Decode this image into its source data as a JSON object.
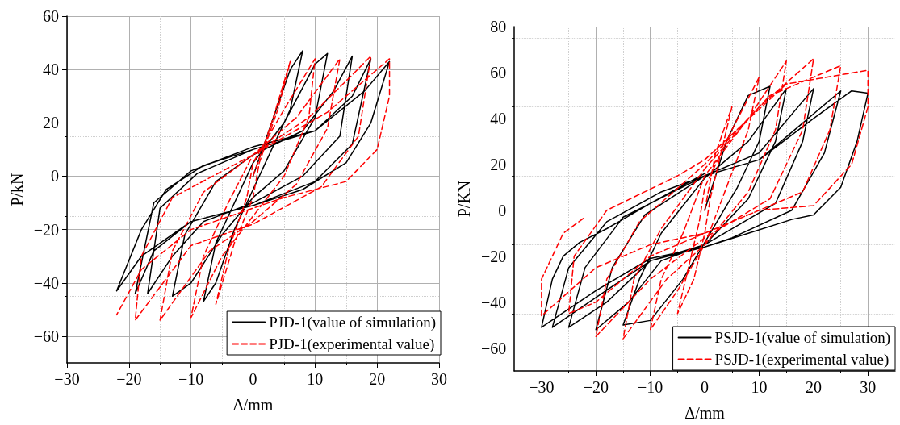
{
  "chart_data": [
    {
      "type": "line",
      "xlabel": "Δ/mm",
      "ylabel": "P/kN",
      "xlim": [
        -30,
        30
      ],
      "xticks": [
        -30,
        -20,
        -10,
        0,
        10,
        20,
        30
      ],
      "ylim": [
        -70,
        60
      ],
      "yticks": [
        -60,
        -40,
        -20,
        0,
        20,
        40,
        60
      ],
      "grid": true,
      "legend": "bottom right",
      "marker": "none",
      "series": [
        {
          "name": "PJD-1(value of simulation)",
          "color": "#000000",
          "line_style": "solid",
          "x": [
            0,
            3,
            6,
            8,
            6,
            2,
            0,
            -3,
            -6,
            -8,
            -6,
            -2,
            0,
            5,
            10,
            12,
            10,
            5,
            0,
            -5,
            -10,
            -13,
            -11,
            -6,
            0,
            8,
            13,
            16,
            14,
            8,
            0,
            -8,
            -13,
            -17,
            -15,
            -9,
            0,
            10,
            16,
            19,
            16,
            10,
            0,
            -10,
            -16,
            -19,
            -16,
            -10,
            0,
            10,
            18,
            22,
            19,
            15,
            8,
            0,
            -10,
            -18,
            -22,
            -18,
            -14,
            -8,
            0
          ],
          "values": [
            0,
            20,
            40,
            47,
            25,
            5,
            -5,
            -20,
            -40,
            -47,
            -25,
            -5,
            5,
            20,
            42,
            46,
            22,
            2,
            -8,
            -22,
            -40,
            -45,
            -22,
            -2,
            8,
            17,
            32,
            45,
            15,
            0,
            -10,
            -17,
            -30,
            -44,
            -12,
            1,
            10,
            17,
            30,
            44,
            12,
            -2,
            -11,
            -17,
            -28,
            -44,
            -10,
            2,
            11,
            17,
            32,
            43,
            20,
            5,
            -5,
            -11,
            -17,
            -30,
            -43,
            -20,
            -5,
            4,
            10
          ]
        },
        {
          "name": "PJD-1(experimental value)",
          "color": "#ff0000",
          "line_style": "dashed",
          "x": [
            0,
            3,
            6,
            4,
            1,
            0,
            -3,
            -6,
            -4,
            -1,
            0,
            5,
            10,
            9,
            5,
            0,
            -5,
            -10,
            -8,
            -4,
            0,
            7,
            14,
            12,
            7,
            0,
            -7,
            -15,
            -13,
            -8,
            0,
            9,
            16,
            19,
            17,
            11,
            0,
            -10,
            -19,
            -18,
            -13,
            0,
            12,
            20,
            22,
            22,
            20,
            15,
            5,
            0,
            -10,
            -18,
            -22
          ],
          "values": [
            0,
            20,
            43,
            25,
            5,
            -8,
            -25,
            -48,
            -28,
            -8,
            5,
            25,
            44,
            22,
            0,
            -15,
            -30,
            -53,
            -30,
            -10,
            8,
            22,
            44,
            18,
            -3,
            -17,
            -28,
            -54,
            -28,
            -6,
            8,
            22,
            38,
            45,
            15,
            -4,
            -18,
            -26,
            -54,
            -30,
            -8,
            8,
            24,
            40,
            44,
            30,
            10,
            -2,
            -8,
            -12,
            -20,
            -35,
            -52
          ]
        }
      ]
    },
    {
      "type": "line",
      "xlabel": "Δ/mm",
      "ylabel": "P/KN",
      "xlim": [
        -35,
        35
      ],
      "xticks": [
        -30,
        -20,
        -10,
        0,
        10,
        20,
        30
      ],
      "ylim": [
        -70,
        80
      ],
      "yticks": [
        -60,
        -40,
        -20,
        0,
        20,
        40,
        60,
        80
      ],
      "grid": true,
      "legend": "bottom right",
      "marker": "none",
      "series": [
        {
          "name": "PSJD-1(value of simulation)",
          "color": "#000000",
          "line_style": "solid",
          "x": [
            0,
            4,
            8,
            12,
            10,
            6,
            0,
            -4,
            -10,
            -15,
            -12,
            -8,
            0,
            8,
            15,
            13,
            8,
            0,
            -8,
            -14,
            -20,
            -17,
            -11,
            0,
            10,
            20,
            18,
            13,
            0,
            -10,
            -18,
            -25,
            -22,
            -15,
            0,
            10,
            18,
            25,
            22,
            16,
            5,
            0,
            -10,
            -20,
            -28,
            -25,
            -18,
            -8,
            0,
            10,
            20,
            27,
            30,
            28,
            25,
            20,
            16,
            8,
            0,
            -10,
            -20,
            -30,
            -28,
            -26,
            -23,
            -18,
            -10,
            0
          ],
          "values": [
            0,
            30,
            50,
            54,
            30,
            10,
            -14,
            -30,
            -48,
            -50,
            -30,
            -10,
            14,
            30,
            53,
            30,
            5,
            -15,
            -22,
            -40,
            -52,
            -25,
            -2,
            15,
            25,
            53,
            30,
            3,
            -15,
            -22,
            -40,
            -51,
            -25,
            -3,
            15,
            22,
            38,
            52,
            25,
            0,
            -12,
            -16,
            -22,
            -38,
            -51,
            -25,
            -5,
            8,
            15,
            22,
            40,
            52,
            51,
            30,
            10,
            -2,
            -4,
            -10,
            -16,
            -21,
            -35,
            -51,
            -30,
            -20,
            -14,
            -8,
            3,
            16
          ]
        },
        {
          "name": "PSJD-1(experimental value)",
          "color": "#ff0000",
          "line_style": "dashed",
          "x": [
            0,
            2,
            5,
            3,
            1,
            0,
            -2,
            -5,
            -3,
            -1,
            0,
            5,
            10,
            8,
            4,
            0,
            -5,
            -10,
            -8,
            -4,
            0,
            8,
            15,
            13,
            8,
            0,
            -7,
            -15,
            -13,
            -8,
            0,
            10,
            20,
            18,
            12,
            0,
            -10,
            -20,
            -18,
            -12,
            0,
            12,
            25,
            23,
            18,
            8,
            0,
            -10,
            -20,
            -25,
            -24,
            -18,
            -5,
            0,
            15,
            30,
            30,
            27,
            20,
            10,
            0,
            -10,
            -20,
            -30,
            -30,
            -26,
            -22
          ],
          "values": [
            0,
            25,
            45,
            25,
            5,
            -10,
            -30,
            -45,
            -25,
            -5,
            10,
            35,
            58,
            35,
            10,
            -15,
            -35,
            -52,
            -30,
            -10,
            15,
            40,
            65,
            35,
            8,
            -15,
            -30,
            -56,
            -30,
            -8,
            18,
            45,
            66,
            35,
            5,
            -12,
            -30,
            -55,
            -30,
            -5,
            20,
            50,
            63,
            35,
            8,
            -2,
            -10,
            -20,
            -40,
            -45,
            -20,
            0,
            15,
            22,
            55,
            61,
            45,
            20,
            2,
            0,
            -10,
            -15,
            -25,
            -46,
            -30,
            -10,
            -3
          ]
        }
      ]
    }
  ]
}
